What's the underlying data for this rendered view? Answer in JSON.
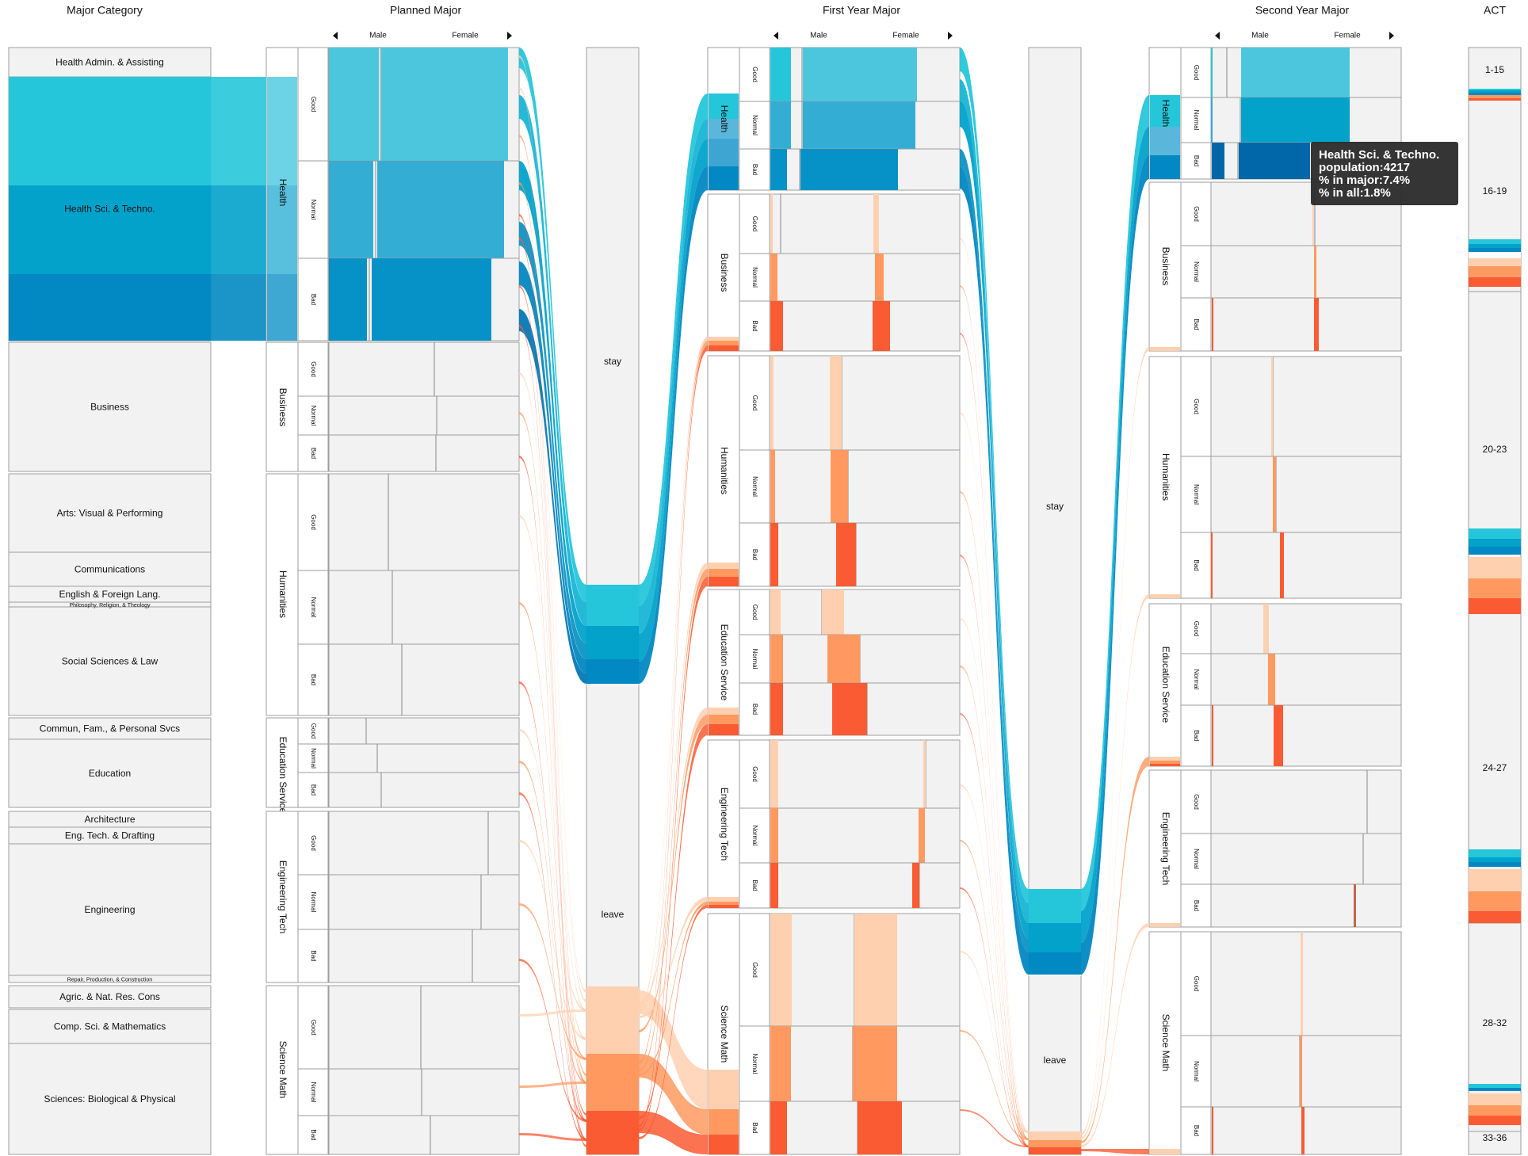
{
  "headers": {
    "major_category": "Major Category",
    "planned": "Planned Major",
    "first_year": "First Year Major",
    "second_year": "Second Year Major",
    "act": "ACT"
  },
  "gender": {
    "male": "Male",
    "female": "Female"
  },
  "categories": [
    "Health Admin. & Assisting",
    "Health Sci. & Techno.",
    "Business",
    "Arts: Visual & Performing",
    "Communications",
    "English & Foreign Lang.",
    "Philosophy, Religion, & Theology",
    "Social Sciences & Law",
    "Commun, Fam., & Personal Svcs",
    "Education",
    "Architecture",
    "Eng. Tech. & Drafting",
    "Engineering",
    "Repair, Production, & Construction",
    "Agric. & Nat. Res. Cons",
    "Comp. Sci. & Mathematics",
    "Sciences: Biological & Physical"
  ],
  "major_groups": [
    "Health",
    "Business",
    "Humanities",
    "Education Service",
    "Engineering Tech",
    "Science Math"
  ],
  "performance": [
    "Good",
    "Normal",
    "Bad"
  ],
  "stay_leave": {
    "stay": "stay",
    "leave": "leave"
  },
  "act_bins": [
    "1-15",
    "16-19",
    "20-23",
    "24-27",
    "28-32",
    "33-36"
  ],
  "tooltip": {
    "title": "Health Sci. & Techno.",
    "population": "population:4217",
    "in_major": "% in major:7.4%",
    "in_all": "% in all:1.8%"
  },
  "colors": {
    "health_light": "#26c6da",
    "health_mid": "#03a2cb",
    "health_dark": "#0288c2",
    "health_darkest": "#0167a8",
    "other_light": "#ffd0b0",
    "other_mid": "#ff9960",
    "other_dark": "#fb5b33",
    "neutral": "#f2f2f2",
    "border": "#9e9e9e"
  }
}
